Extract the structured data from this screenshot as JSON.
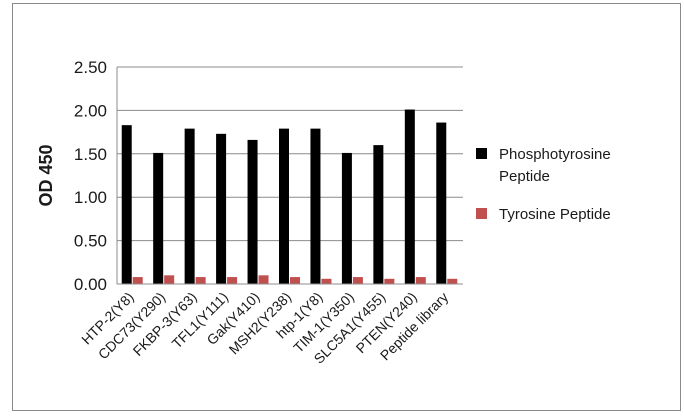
{
  "chart_data": {
    "type": "bar",
    "title": "",
    "xlabel": "",
    "ylabel": "OD 450",
    "ylim": [
      0,
      2.5
    ],
    "yticks": [
      "0.00",
      "0.50",
      "1.00",
      "1.50",
      "2.00",
      "2.50"
    ],
    "grid": true,
    "legend_position": "right",
    "categories": [
      "HTP-2(Y8)",
      "CDC73(Y290)",
      "FKBP-3(Y63)",
      "TFL1(Y111)",
      "Gak(Y410)",
      "MSH2(Y238)",
      "htp-1(Y8)",
      "TIM-1(Y350)",
      "SLC5A1(Y455)",
      "PTEN(Y240)",
      "Peptide library"
    ],
    "series": [
      {
        "name": "Phosphotyrosine Peptide",
        "legend_lines": [
          "Phosphotyrosine",
          "Peptide"
        ],
        "color": "#000000",
        "values": [
          1.83,
          1.51,
          1.79,
          1.73,
          1.66,
          1.79,
          1.79,
          1.51,
          1.6,
          2.01,
          1.86
        ]
      },
      {
        "name": "Tyrosine Peptide",
        "legend_lines": [
          "Tyrosine Peptide"
        ],
        "color": "#c0504d",
        "values": [
          0.08,
          0.1,
          0.08,
          0.08,
          0.1,
          0.08,
          0.06,
          0.08,
          0.06,
          0.08,
          0.06
        ]
      }
    ]
  }
}
